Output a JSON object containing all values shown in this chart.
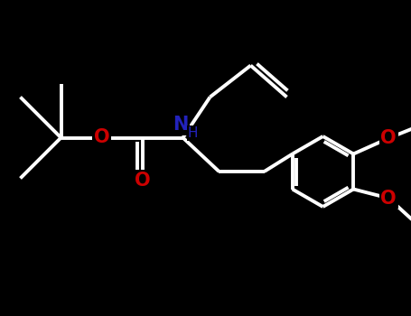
{
  "background_color": "#000000",
  "bond_color": "#ffffff",
  "N_color": "#2222bb",
  "O_color": "#cc0000",
  "bond_width": 2.8,
  "font_size_atom": 14,
  "fig_width": 4.55,
  "fig_height": 3.5,
  "dpi": 100,
  "xlim": [
    0,
    9.1
  ],
  "ylim": [
    0,
    7.0
  ]
}
